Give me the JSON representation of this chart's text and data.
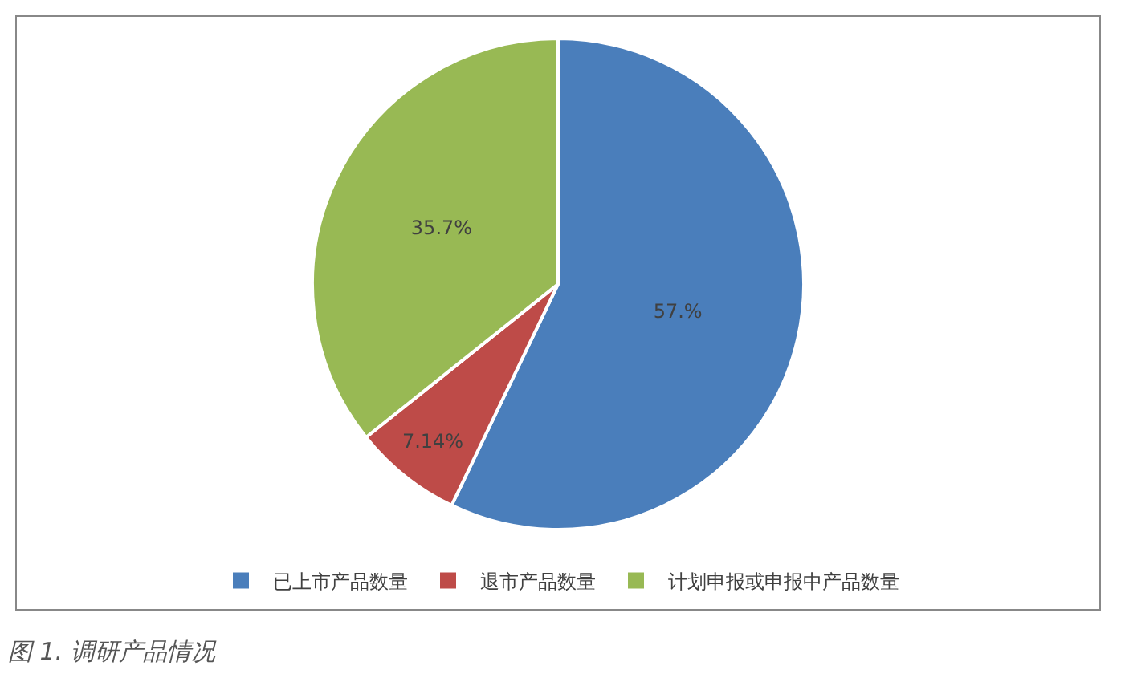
{
  "chart_data": {
    "type": "pie",
    "categories": [
      "已上市产品数量",
      "退市产品数量",
      "计划申报或申报中产品数量"
    ],
    "values": [
      57.1,
      7.14,
      35.7
    ],
    "value_labels": [
      "57.%",
      "7.14%",
      "35.7%"
    ],
    "colors": [
      "#4a7ebb",
      "#be4b48",
      "#98b954"
    ],
    "legend": "bottom",
    "annotations": [
      "图 1. 调研产品情况"
    ]
  }
}
